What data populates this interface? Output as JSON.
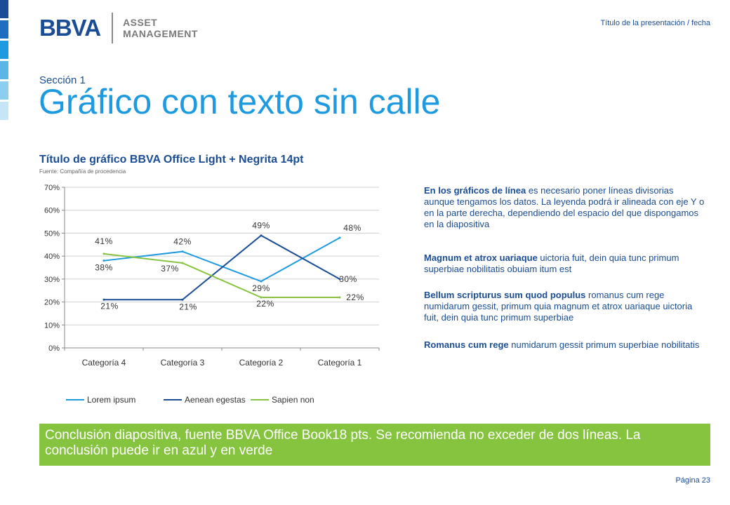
{
  "header": {
    "logo_brand": "BBVA",
    "logo_sub_line1": "ASSET",
    "logo_sub_line2": "MANAGEMENT",
    "presentation_title": "Título de la presentación / fecha"
  },
  "side_stripe_colors": [
    "#1a4d95",
    "#1e6fc0",
    "#1e9be0",
    "#5bb6e8",
    "#8ccdf0",
    "#c6e6f7"
  ],
  "section": "Sección 1",
  "title": "Gráfico con texto sin calle",
  "chart_heading": "Título de gráfico  BBVA Office Light + Negrita 14pt",
  "chart_source": "Fuente: Compañía de procedencia",
  "chart_data": {
    "type": "line",
    "categories": [
      "Categoría 4",
      "Categoría 3",
      "Categoría 2",
      "Categoría 1"
    ],
    "y_ticks": [
      "70%",
      "60%",
      "50%",
      "40%",
      "30%",
      "20%",
      "10%",
      "0%"
    ],
    "ylim": [
      0,
      70
    ],
    "grid": true,
    "legend_position": "bottom",
    "series": [
      {
        "name": "Lorem ipsum",
        "color": "#1e9be0",
        "values": [
          38,
          42,
          29,
          48
        ],
        "labels": [
          "38%",
          "42%",
          "29%",
          "48%"
        ]
      },
      {
        "name": "Aenean egestas",
        "color": "#1a4d95",
        "values": [
          21,
          21,
          49,
          30
        ],
        "labels": [
          "21%",
          "21%",
          "49%",
          "30%"
        ]
      },
      {
        "name": "Sapien non",
        "color": "#86c440",
        "values": [
          41,
          37,
          22,
          22
        ],
        "labels": [
          "41%",
          "37%",
          "22%",
          "22%"
        ]
      }
    ]
  },
  "paragraphs": [
    {
      "bold": "En los gráficos de línea",
      "text": " es necesario poner líneas divisorias aunque tengamos los datos. La leyenda podrá ir alineada con eje Y o en la parte derecha, dependiendo del espacio del que dispongamos en la diapositiva"
    },
    {
      "bold": "Magnum et atrox uariaque",
      "text": " uictoria fuit, dein quia tunc primum superbiae nobilitatis obuiam itum est"
    },
    {
      "bold": "Bellum scripturus sum quod populus",
      "text": " romanus cum rege numidarum gessit, primum quia magnum et atrox uariaque uictoria fuit, dein quia tunc primum superbiae"
    },
    {
      "bold": "Romanus cum rege",
      "text": " numidarum gessit primum superbiae nobilitatis"
    }
  ],
  "conclusion": "Conclusión diapositiva, fuente  BBVA Office Book18 pts. Se recomienda no exceder de dos líneas. La conclusión puede ir en azul y en verde",
  "page_number": "Página 23"
}
